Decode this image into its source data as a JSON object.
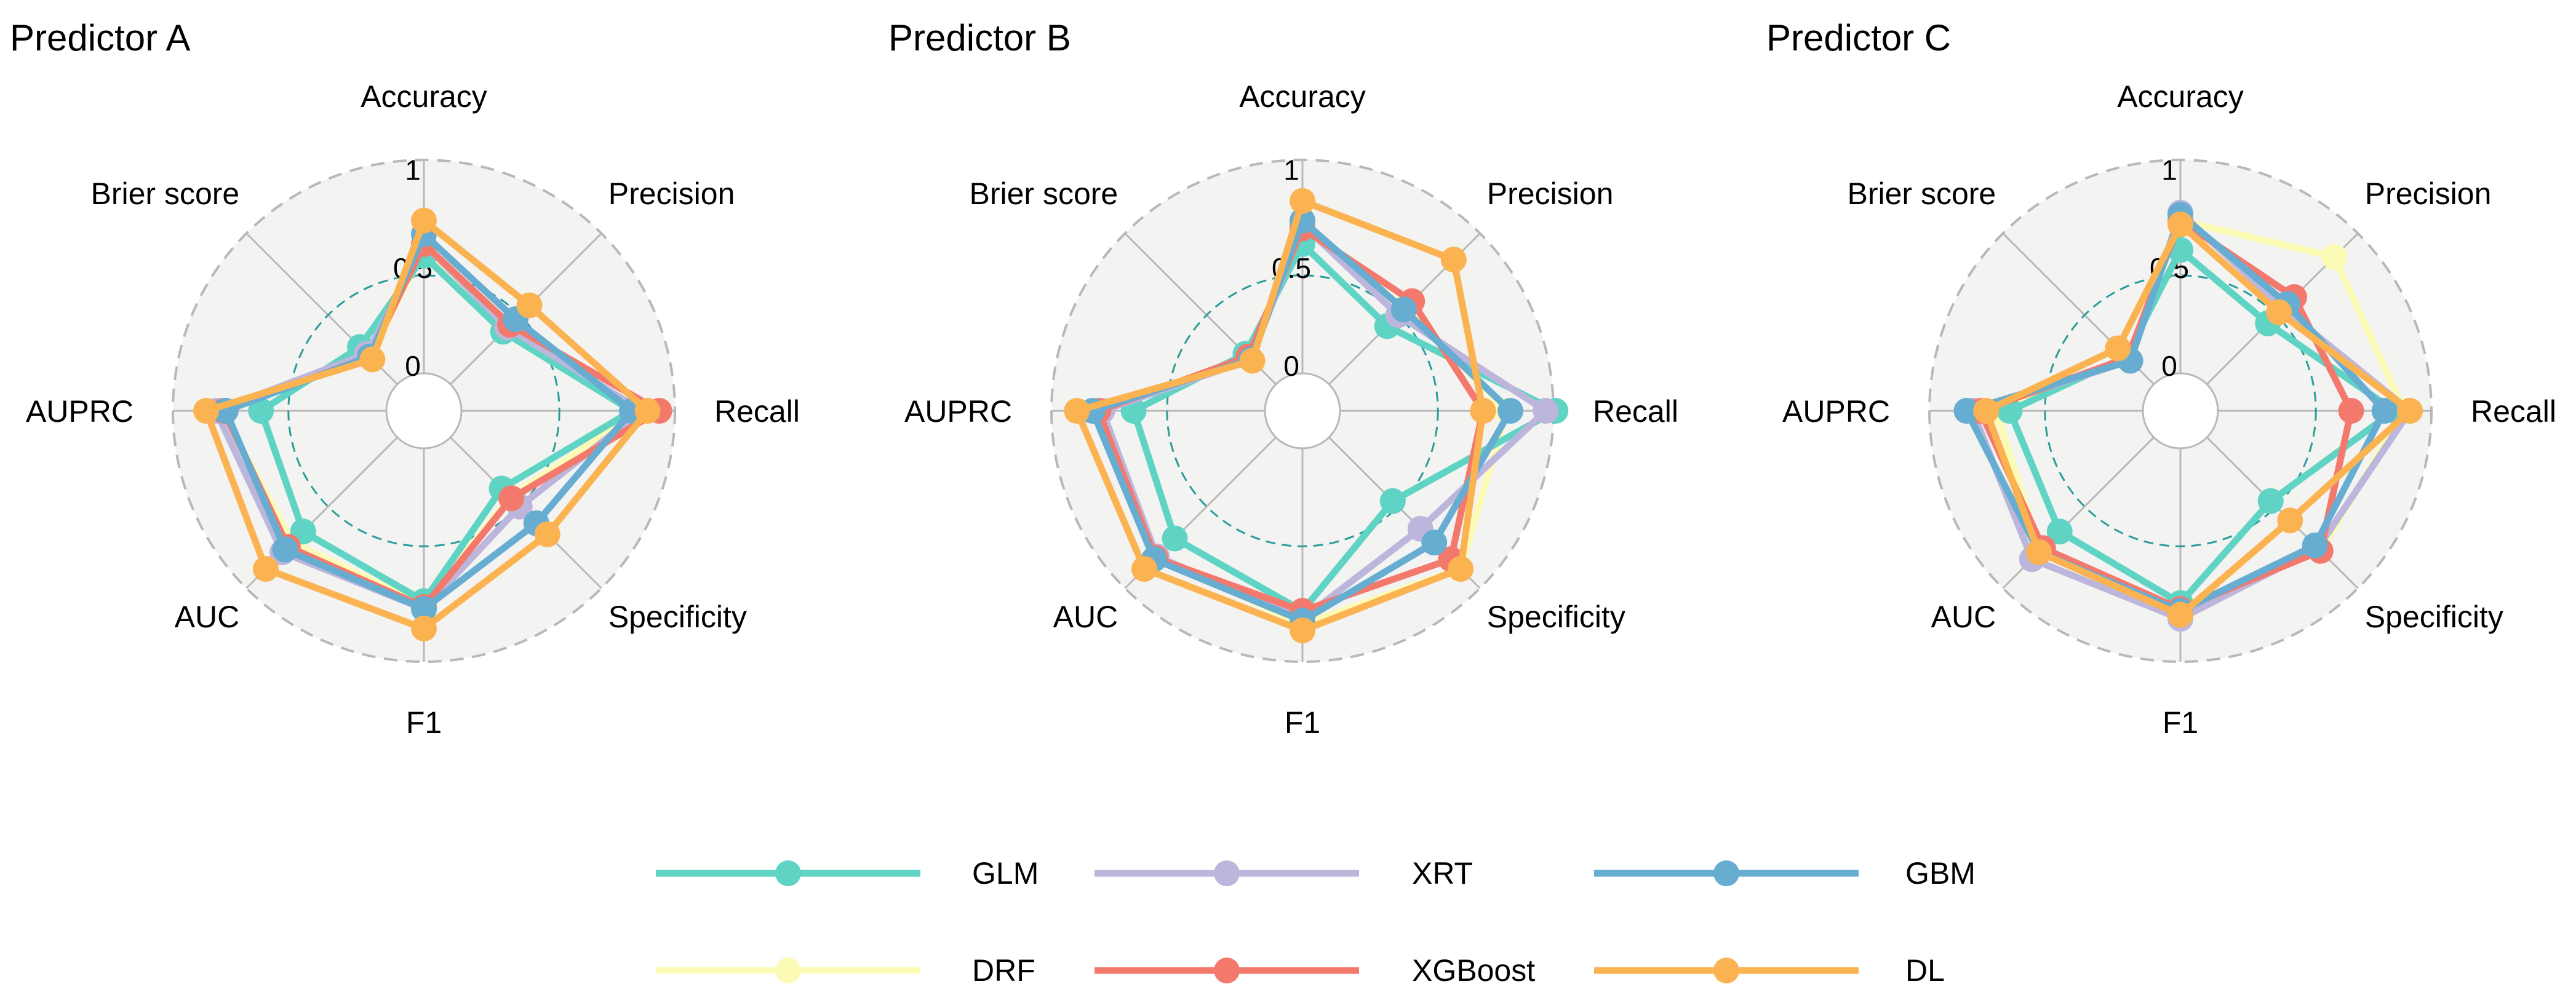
{
  "chart_data": {
    "type": "radar",
    "metrics": [
      "Accuracy",
      "Precision",
      "Recall",
      "Specificity",
      "F1",
      "AUC",
      "AUPRC",
      "Brier score"
    ],
    "ticks": [
      {
        "value": 0,
        "label": "0"
      },
      {
        "value": 0.5,
        "label": "0.5"
      },
      {
        "value": 1,
        "label": "1"
      }
    ],
    "range": [
      0,
      1
    ],
    "colors": {
      "GLM": "#5fd3c4",
      "XRT": "#bcb6dc",
      "GBM": "#66add1",
      "DRF": "#fcfbb6",
      "XGBoost": "#f4796d",
      "DL": "#fbb352"
    },
    "series_order": [
      "GLM",
      "XRT",
      "GBM",
      "DRF",
      "XGBoost",
      "DL"
    ],
    "legend": [
      {
        "name": "GLM",
        "label": "GLM"
      },
      {
        "name": "XRT",
        "label": "XRT"
      },
      {
        "name": "GBM",
        "label": "GBM"
      },
      {
        "name": "DRF",
        "label": "DRF"
      },
      {
        "name": "XGBoost",
        "label": "XGBoost"
      },
      {
        "name": "DL",
        "label": "DL"
      }
    ],
    "panels": [
      {
        "title": "Predictor A",
        "series": [
          {
            "name": "GLM",
            "values": [
              0.6,
              0.38,
              0.87,
              0.37,
              0.78,
              0.68,
              0.64,
              0.27
            ]
          },
          {
            "name": "XRT",
            "values": [
              0.66,
              0.41,
              0.92,
              0.5,
              0.82,
              0.83,
              0.87,
              0.22
            ]
          },
          {
            "name": "GBM",
            "values": [
              0.71,
              0.47,
              0.87,
              0.62,
              0.82,
              0.81,
              0.82,
              0.2
            ]
          },
          {
            "name": "DRF",
            "values": [
              0.63,
              0.4,
              0.91,
              0.43,
              0.8,
              0.76,
              0.84,
              0.2
            ]
          },
          {
            "name": "XGBoost",
            "values": [
              0.66,
              0.43,
              1.01,
              0.44,
              0.81,
              0.79,
              0.83,
              0.2
            ]
          },
          {
            "name": "DL",
            "values": [
              0.78,
              0.57,
              0.95,
              0.7,
              0.92,
              0.95,
              0.92,
              0.18
            ]
          }
        ]
      },
      {
        "title": "Predictor B",
        "series": [
          {
            "name": "GLM",
            "values": [
              0.66,
              0.42,
              1.1,
              0.46,
              0.83,
              0.73,
              0.67,
              0.22
            ]
          },
          {
            "name": "XRT",
            "values": [
              0.76,
              0.5,
              1.05,
              0.66,
              0.87,
              0.86,
              0.83,
              0.18
            ]
          },
          {
            "name": "GBM",
            "values": [
              0.78,
              0.54,
              0.87,
              0.76,
              0.88,
              0.88,
              0.88,
              0.18
            ]
          },
          {
            "name": "DRF",
            "values": [
              0.75,
              0.55,
              0.85,
              0.95,
              0.9,
              0.86,
              0.86,
              0.2
            ]
          },
          {
            "name": "XGBoost",
            "values": [
              0.74,
              0.6,
              0.73,
              0.88,
              0.83,
              0.87,
              0.85,
              0.2
            ]
          },
          {
            "name": "DL",
            "values": [
              0.88,
              0.9,
              0.73,
              0.95,
              0.93,
              0.95,
              0.96,
              0.17
            ]
          }
        ]
      },
      {
        "title": "Predictor C",
        "series": [
          {
            "name": "GLM",
            "values": [
              0.63,
              0.44,
              0.9,
              0.46,
              0.79,
              0.68,
              0.68,
              0.2
            ]
          },
          {
            "name": "XRT",
            "values": [
              0.82,
              0.55,
              0.98,
              0.8,
              0.87,
              0.88,
              0.87,
              0.17
            ]
          },
          {
            "name": "GBM",
            "values": [
              0.81,
              0.58,
              0.85,
              0.78,
              0.83,
              0.83,
              0.9,
              0.17
            ]
          },
          {
            "name": "DRF",
            "values": [
              0.78,
              0.92,
              0.95,
              0.82,
              0.82,
              0.82,
              0.75,
              0.19
            ]
          },
          {
            "name": "XGBoost",
            "values": [
              0.78,
              0.63,
              0.68,
              0.82,
              0.82,
              0.8,
              0.83,
              0.19
            ]
          },
          {
            "name": "DL",
            "values": [
              0.76,
              0.52,
              0.98,
              0.6,
              0.85,
              0.83,
              0.8,
              0.26
            ]
          }
        ]
      }
    ]
  }
}
